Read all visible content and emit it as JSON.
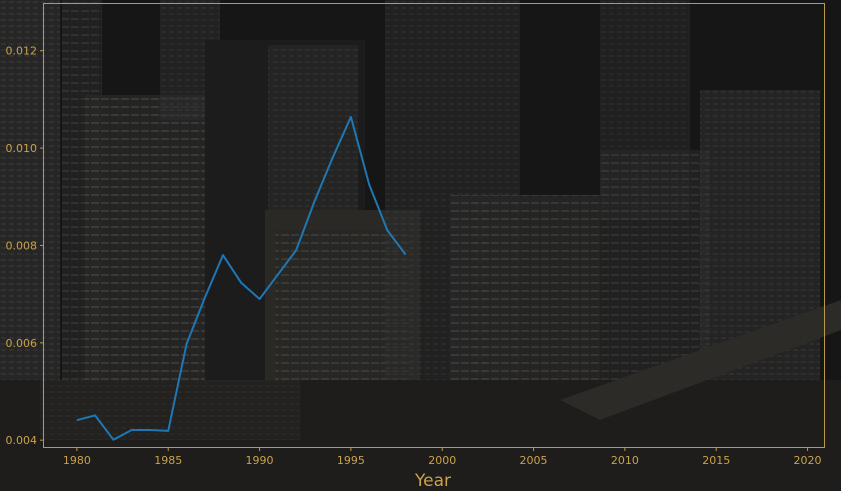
{
  "chart_data": {
    "type": "line",
    "xlabel": "Year",
    "ylabel": "",
    "xlim": [
      1978.2,
      2020.9
    ],
    "ylim": [
      0.00386,
      0.01296
    ],
    "xticks": [
      1980,
      1985,
      1990,
      1995,
      2000,
      2005,
      2010,
      2015,
      2020
    ],
    "yticks": [
      0.004,
      0.006,
      0.008,
      0.01,
      0.012
    ],
    "ytick_labels": [
      "0.004",
      "0.006",
      "0.008",
      "0.010",
      "0.012"
    ],
    "grid": false,
    "series": [
      {
        "color": "#1f77b4",
        "x": [
          1980,
          1981,
          1982,
          1983,
          1984,
          1985,
          1986,
          1987,
          1988,
          1989,
          1990,
          1991,
          1992,
          1993,
          1994,
          1995,
          1996,
          1997,
          1998
        ],
        "y": [
          0.00441,
          0.00451,
          0.00401,
          0.00421,
          0.00421,
          0.00419,
          0.00597,
          0.00692,
          0.0078,
          0.00723,
          0.0069,
          0.0074,
          0.0079,
          0.0089,
          0.0098,
          0.01064,
          0.00925,
          0.00831,
          0.00781
        ]
      }
    ]
  },
  "colors": {
    "axis": "#b89a4a",
    "text": "#c9a24a",
    "line": "#1f77b4",
    "background": "#141414"
  }
}
